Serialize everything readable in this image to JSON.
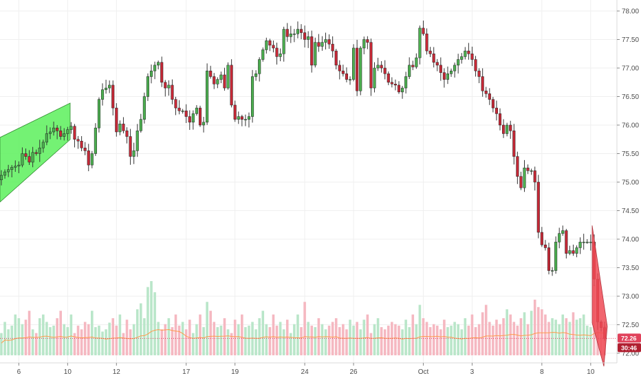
{
  "chart_data": {
    "type": "candlestick",
    "colors": {
      "up": "#4caf50",
      "down": "#c62836",
      "wick": "#333333",
      "vol_up": "#b9e6c9",
      "vol_down": "#f5b8c1",
      "channel_fill": "#5cf05c",
      "channel_stroke": "#2e8b2e",
      "wedge_fill": "#ef4a55",
      "ma": "#ff9a4a",
      "last_price": "#e0425b",
      "grid": "#efefef"
    },
    "y_axis": {
      "min": 71.75,
      "max": 78.15,
      "ticks": [
        "78.00",
        "77.50",
        "77.00",
        "76.50",
        "76.00",
        "75.50",
        "75.00",
        "74.50",
        "74.00",
        "73.50",
        "73.00",
        "72.50",
        "72.00"
      ]
    },
    "x_axis": {
      "ticks": [
        {
          "label": "6",
          "index": 5
        },
        {
          "label": "10",
          "index": 19
        },
        {
          "label": "12",
          "index": 33
        },
        {
          "label": "17",
          "index": 53
        },
        {
          "label": "19",
          "index": 67
        },
        {
          "label": "24",
          "index": 87
        },
        {
          "label": "26",
          "index": 101
        },
        {
          "label": "Oct",
          "index": 121
        },
        {
          "label": "3",
          "index": 135
        },
        {
          "label": "8",
          "index": 155
        },
        {
          "label": "10",
          "index": 169
        }
      ]
    },
    "last_price": {
      "value": "72.26",
      "countdown": "30:46"
    },
    "closes": [
      75.12,
      75.18,
      75.22,
      75.26,
      75.28,
      75.3,
      75.5,
      75.45,
      75.35,
      75.52,
      75.5,
      75.6,
      75.7,
      75.85,
      75.88,
      75.95,
      75.9,
      75.8,
      75.85,
      75.92,
      75.98,
      75.75,
      75.72,
      75.6,
      75.55,
      75.3,
      75.5,
      75.95,
      76.45,
      76.62,
      76.65,
      76.7,
      76.3,
      75.88,
      76.02,
      75.9,
      75.8,
      75.45,
      75.55,
      75.9,
      76.1,
      76.5,
      76.85,
      76.95,
      77.05,
      77.1,
      76.75,
      76.65,
      76.7,
      76.45,
      76.3,
      76.25,
      76.25,
      76.15,
      76.05,
      76.2,
      76.3,
      76.0,
      76.05,
      76.95,
      76.85,
      76.72,
      76.8,
      76.88,
      76.65,
      77.05,
      76.35,
      76.1,
      76.15,
      76.1,
      76.1,
      76.15,
      76.85,
      76.9,
      77.15,
      77.32,
      77.48,
      77.4,
      77.35,
      77.2,
      77.25,
      77.68,
      77.55,
      77.6,
      77.6,
      77.68,
      77.62,
      77.5,
      77.55,
      77.05,
      77.45,
      77.38,
      77.45,
      77.5,
      77.42,
      77.3,
      77.05,
      76.95,
      76.9,
      76.8,
      76.8,
      77.35,
      76.6,
      77.35,
      77.5,
      77.45,
      76.65,
      77.0,
      77.05,
      77.0,
      76.9,
      76.75,
      76.72,
      76.7,
      76.58,
      76.65,
      76.85,
      77.05,
      77.02,
      77.18,
      77.7,
      77.6,
      77.3,
      77.25,
      77.1,
      77.05,
      76.92,
      76.8,
      76.9,
      76.95,
      77.05,
      77.15,
      77.2,
      77.3,
      77.25,
      77.15,
      76.95,
      76.85,
      76.6,
      76.55,
      76.45,
      76.3,
      76.2,
      76.0,
      75.85,
      76.0,
      75.9,
      75.45,
      75.1,
      74.9,
      75.25,
      75.2,
      75.2,
      75.0,
      74.12,
      73.9,
      73.85,
      73.45,
      73.45,
      73.95,
      74.1,
      74.15,
      73.75,
      73.8,
      73.75,
      73.85,
      73.95,
      73.95,
      73.95,
      73.95,
      73.3,
      72.55,
      72.45,
      72.26
    ],
    "volume_rel": [
      0.3,
      0.45,
      0.35,
      0.4,
      0.55,
      0.5,
      0.42,
      0.48,
      0.6,
      0.35,
      0.3,
      0.5,
      0.55,
      0.45,
      0.38,
      0.4,
      0.5,
      0.6,
      0.42,
      0.38,
      0.55,
      0.3,
      0.4,
      0.35,
      0.45,
      0.42,
      0.6,
      0.38,
      0.4,
      0.32,
      0.35,
      0.44,
      0.5,
      0.4,
      0.55,
      0.3,
      0.48,
      0.35,
      0.42,
      0.62,
      0.7,
      0.5,
      0.92,
      1.0,
      0.85,
      0.45,
      0.35,
      0.42,
      0.5,
      0.38,
      0.55,
      0.4,
      0.45,
      0.35,
      0.48,
      0.3,
      0.42,
      0.55,
      0.38,
      0.72,
      0.6,
      0.45,
      0.38,
      0.4,
      0.5,
      0.35,
      0.3,
      0.48,
      0.42,
      0.55,
      0.38,
      0.4,
      0.45,
      0.35,
      0.5,
      0.6,
      0.42,
      0.38,
      0.55,
      0.4,
      0.45,
      0.35,
      0.48,
      0.3,
      0.42,
      0.55,
      0.38,
      0.72,
      0.45,
      0.4,
      0.38,
      0.5,
      0.42,
      0.35,
      0.4,
      0.45,
      0.5,
      0.38,
      0.42,
      0.35,
      0.48,
      0.4,
      0.45,
      0.35,
      0.48,
      0.55,
      0.3,
      0.42,
      0.5,
      0.38,
      0.35,
      0.4,
      0.45,
      0.42,
      0.4,
      0.35,
      0.48,
      0.38,
      0.55,
      0.42,
      0.68,
      0.5,
      0.45,
      0.38,
      0.42,
      0.4,
      0.35,
      0.48,
      0.38,
      0.4,
      0.45,
      0.42,
      0.35,
      0.5,
      0.4,
      0.55,
      0.38,
      0.42,
      0.58,
      0.68,
      0.45,
      0.4,
      0.48,
      0.42,
      0.5,
      0.62,
      0.55,
      0.45,
      0.4,
      0.5,
      0.58,
      0.42,
      0.6,
      0.75,
      0.65,
      0.62,
      0.55,
      0.45,
      0.5,
      0.48,
      0.42,
      0.55,
      0.5,
      0.45,
      0.58,
      0.48,
      0.5,
      0.55,
      0.4,
      0.38,
      0.95,
      0.8
    ]
  }
}
